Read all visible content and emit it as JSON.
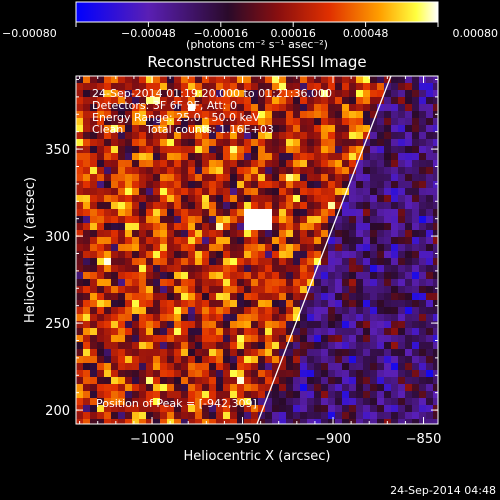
{
  "chart_data": {
    "type": "heatmap",
    "title": "Reconstructed RHESSI Image",
    "xlabel": "Heliocentric X (arcsec)",
    "ylabel": "Heliocentric Y (arcsec)",
    "xlim": [
      -1042,
      -842
    ],
    "ylim": [
      192,
      392
    ],
    "x_ticks": [
      -1000,
      -950,
      -900,
      -850
    ],
    "x_tick_labels": [
      "−1000",
      "−950",
      "−900",
      "−850"
    ],
    "y_ticks": [
      200,
      250,
      300,
      350
    ],
    "y_tick_labels": [
      "200",
      "250",
      "300",
      "350"
    ],
    "colorbar": {
      "min": -0.0008,
      "max": 0.0008,
      "ticks": [
        -0.0008,
        -0.00048,
        -0.00016,
        0.00016,
        0.00048,
        0.0008
      ],
      "tick_labels": [
        "−0.00080",
        "−0.00048",
        "−0.00016",
        "0.00016",
        "0.00048",
        "0.00080"
      ],
      "units": "(photons cm⁻² s⁻¹ asec⁻²)",
      "colormap": [
        "#0000ff",
        "#5a1fb4",
        "#2a0a2a",
        "#8a0f0f",
        "#e03000",
        "#ffa000",
        "#ffff40",
        "#ffffff"
      ]
    },
    "annotations": {
      "time_range": "24-Sep-2014 01:19:20.000 to 01:21:36.000",
      "detectors": "Detectors: 3F 6F 9F, Att: 0",
      "energy": "Energy Range: 25.0 - 50.0 keV",
      "clean": "Clean",
      "counts": "Total counts: 1.16E+03",
      "peak": "Position of Peak = [-942,309]"
    },
    "limb_line": {
      "x": [
        -942,
        -868
      ],
      "y": [
        192,
        392
      ]
    },
    "footer_date": "24-Sep-2014 04:48"
  }
}
